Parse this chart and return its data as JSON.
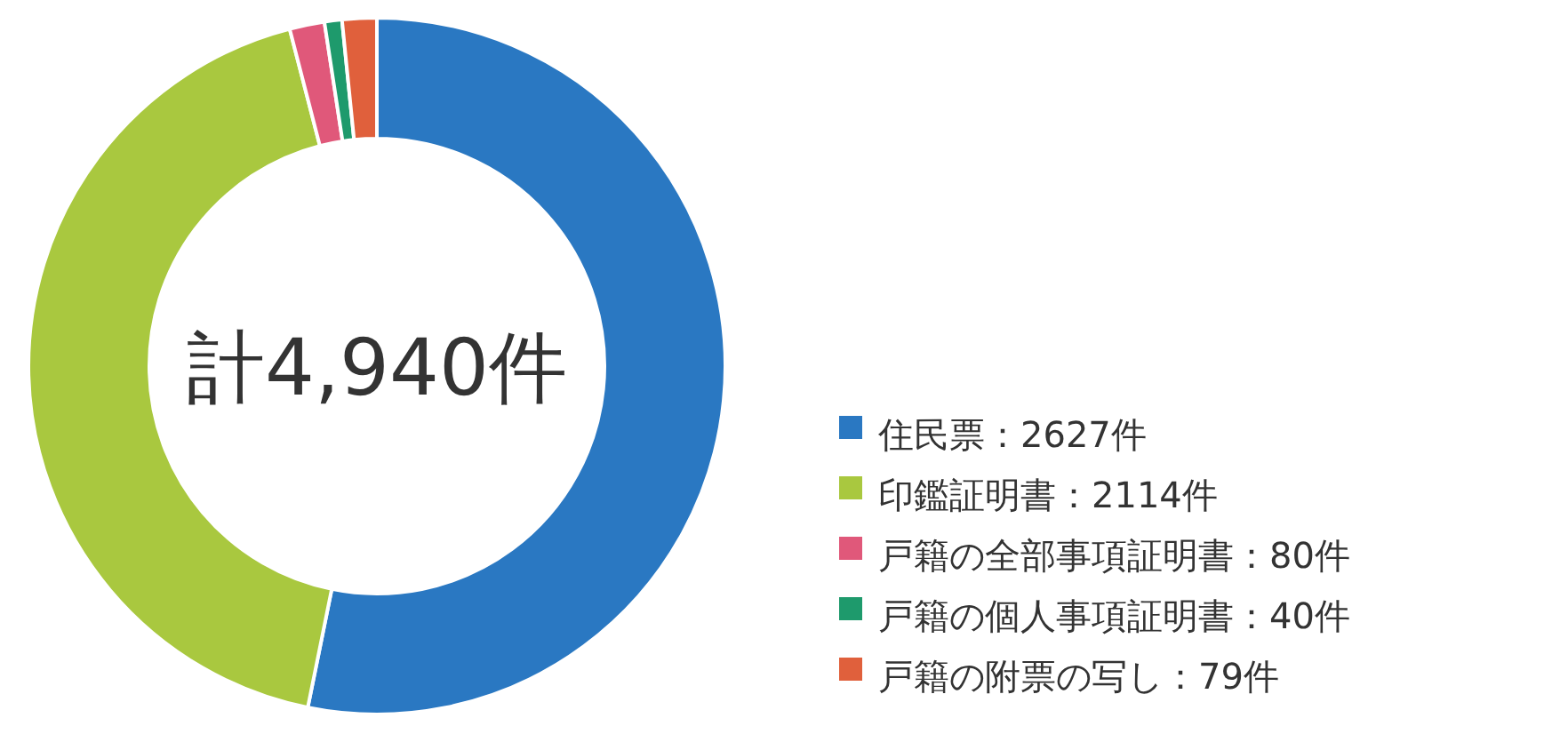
{
  "chart_data": {
    "type": "donut",
    "categories": [
      "住民票：2627件",
      "印鑑証明書：2114件",
      "戸籍の全部事項証明書：80件",
      "戸籍の個人事項証明書：40件",
      "戸籍の附票の写し：79件"
    ],
    "values": [
      2627,
      2114,
      80,
      40,
      79
    ],
    "colors": [
      "#2a78c2",
      "#a9c83f",
      "#e0587a",
      "#1e9a6c",
      "#e0603c"
    ],
    "annotations": [
      "計4,940件"
    ],
    "legend": "bottom right"
  }
}
